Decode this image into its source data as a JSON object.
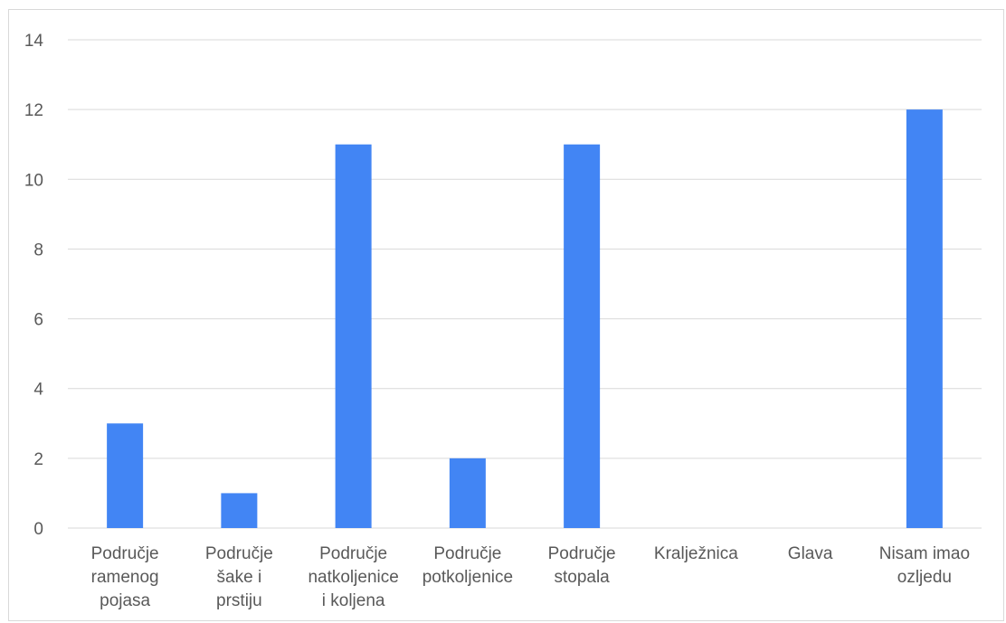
{
  "chart_data": {
    "type": "bar",
    "title": "",
    "xlabel": "",
    "ylabel": "",
    "categories": [
      [
        "Područje",
        "ramenog",
        "pojasa"
      ],
      [
        "Područje",
        "šake i",
        "prstiju"
      ],
      [
        "Područje",
        "natkoljenice",
        "i koljena"
      ],
      [
        "Područje",
        "potkoljenice"
      ],
      [
        "Područje",
        "stopala"
      ],
      [
        "Kralježnica"
      ],
      [
        "Glava"
      ],
      [
        "Nisam imao",
        "ozljedu"
      ]
    ],
    "values": [
      3,
      1,
      11,
      2,
      11,
      0,
      0,
      12
    ],
    "ylim": [
      0,
      14
    ],
    "yticks": [
      "0",
      "2",
      "4",
      "6",
      "8",
      "10",
      "12",
      "14"
    ],
    "grid": true,
    "legend": "none",
    "bar_color": "#4285F4",
    "grid_color": "#d9d9d9",
    "label_color": "#595959"
  }
}
